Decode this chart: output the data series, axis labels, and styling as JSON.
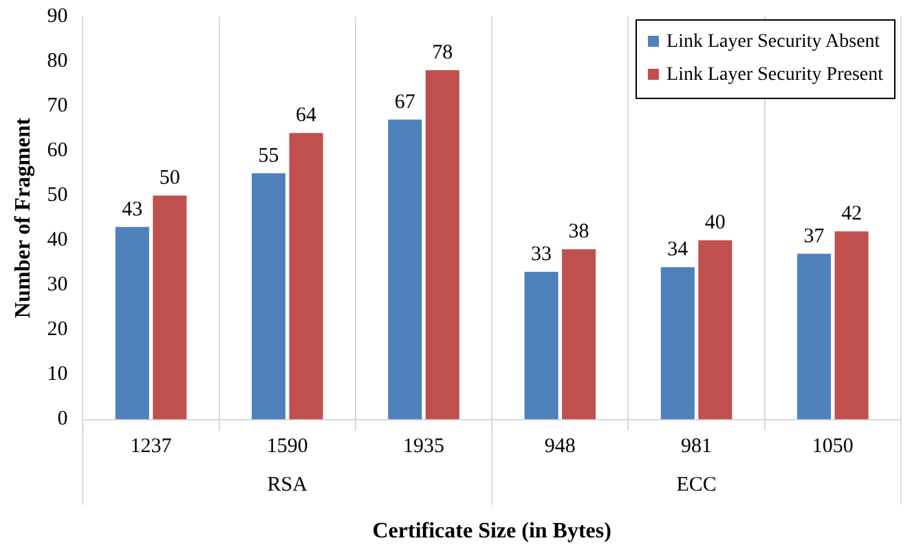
{
  "chart_data": {
    "type": "bar",
    "xlabel": "Certificate Size (in Bytes)",
    "ylabel": "Number of Fragment",
    "categories": [
      "1237",
      "1590",
      "1935",
      "948",
      "981",
      "1050"
    ],
    "series": [
      {
        "name": "Link Layer Security Absent",
        "color": "#4f81bd",
        "values": [
          43,
          55,
          67,
          33,
          34,
          37
        ]
      },
      {
        "name": "Link Layer Security Present",
        "color": "#c0504d",
        "values": [
          50,
          64,
          78,
          38,
          40,
          42
        ]
      }
    ],
    "ylim": [
      0,
      90
    ],
    "yticks": [
      0,
      10,
      20,
      30,
      40,
      50,
      60,
      70,
      80,
      90
    ],
    "grid": "x",
    "legend": "top right",
    "data_labels": true,
    "annotations": [
      "RSA",
      "ECC"
    ]
  }
}
